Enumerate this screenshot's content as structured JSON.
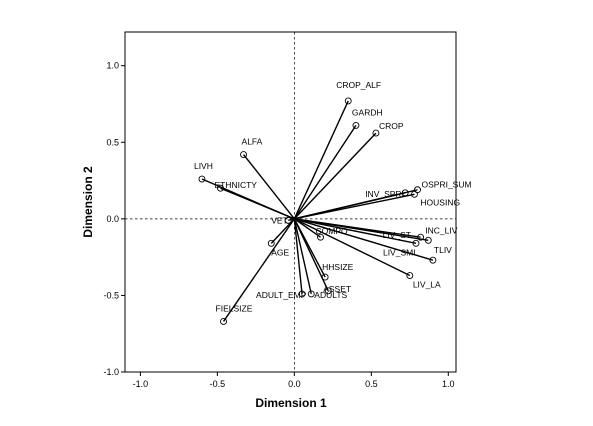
{
  "chart_data": {
    "type": "scatter",
    "title": "",
    "xlabel": "Dimension 1",
    "ylabel": "Dimension 2",
    "xlim": [
      -1.1,
      1.05
    ],
    "ylim": [
      -1.0,
      1.22
    ],
    "xticks": [
      -1.0,
      -0.5,
      0.0,
      0.5,
      1.0
    ],
    "yticks": [
      -1.0,
      -0.5,
      0.0,
      0.5,
      1.0
    ],
    "xtick_labels": [
      "-1.0",
      "-0.5",
      "0.0",
      "0.5",
      "1.0"
    ],
    "ytick_labels": [
      "-1.0",
      "-0.5",
      "0.0",
      "0.5",
      "1.0"
    ],
    "reference_lines": {
      "x": 0.0,
      "y": 0.0,
      "style": "dashed"
    },
    "grid": false,
    "legend": false,
    "points": [
      {
        "label": "CROP_ALF",
        "x": 0.35,
        "y": 0.77
      },
      {
        "label": "GARDH",
        "x": 0.4,
        "y": 0.61
      },
      {
        "label": "CROP",
        "x": 0.53,
        "y": 0.56
      },
      {
        "label": "ALFA",
        "x": -0.33,
        "y": 0.42
      },
      {
        "label": "LIVH",
        "x": -0.6,
        "y": 0.26
      },
      {
        "label": "ETHNICTY",
        "x": -0.48,
        "y": 0.2
      },
      {
        "label": "OSPRI_SUM",
        "x": 0.8,
        "y": 0.19
      },
      {
        "label": "HOUSING",
        "x": 0.78,
        "y": 0.16
      },
      {
        "label": "INV_SPRI",
        "x": 0.72,
        "y": 0.17
      },
      {
        "label": "VET",
        "x": -0.04,
        "y": -0.01
      },
      {
        "label": "AGE",
        "x": -0.15,
        "y": -0.16
      },
      {
        "label": "INC_LIV",
        "x": 0.87,
        "y": -0.14
      },
      {
        "label": "LIV_ST",
        "x": 0.82,
        "y": -0.12
      },
      {
        "label": "LIV_SML",
        "x": 0.79,
        "y": -0.16
      },
      {
        "label": "TLIV",
        "x": 0.9,
        "y": -0.27
      },
      {
        "label": "LIV_LA",
        "x": 0.75,
        "y": -0.37
      },
      {
        "label": "COMPO",
        "x": 0.17,
        "y": -0.12
      },
      {
        "label": "HHSIZE",
        "x": 0.2,
        "y": -0.38
      },
      {
        "label": "ASSET",
        "x": 0.22,
        "y": -0.47
      },
      {
        "label": "ADULT_EMP",
        "x": 0.05,
        "y": -0.49
      },
      {
        "label": "ADULTS",
        "x": 0.11,
        "y": -0.49
      },
      {
        "label": "FIELSIZE",
        "x": -0.46,
        "y": -0.67
      }
    ]
  }
}
